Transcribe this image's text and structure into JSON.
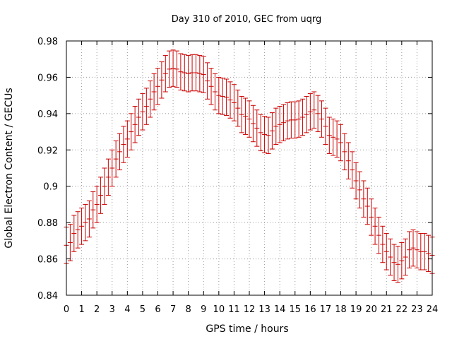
{
  "chart_data": {
    "type": "scatter",
    "title": "Day 310 of 2010, GEC from uqrg",
    "xlabel": "GPS time / hours",
    "ylabel": "Global Electron Content / GECUs",
    "xlim": [
      0,
      24
    ],
    "ylim": [
      0.84,
      0.98
    ],
    "x_ticks": [
      0,
      1,
      2,
      3,
      4,
      5,
      6,
      7,
      8,
      9,
      10,
      11,
      12,
      13,
      14,
      15,
      16,
      17,
      18,
      19,
      20,
      21,
      22,
      23,
      24
    ],
    "y_ticks": [
      0.84,
      0.86,
      0.88,
      0.9,
      0.92,
      0.94,
      0.96,
      0.98
    ],
    "y_tick_labels": [
      "0.84",
      "0.86",
      "0.88",
      "0.9",
      "0.92",
      "0.94",
      "0.96",
      "0.98"
    ],
    "grid": true,
    "error_bar": 0.01,
    "color": "#cc0000",
    "series": [
      {
        "x": [
          0,
          0.25,
          0.5,
          0.75,
          1,
          1.25,
          1.5,
          1.75,
          2,
          2.25,
          2.5,
          2.75,
          3,
          3.25,
          3.5,
          3.75,
          4,
          4.25,
          4.5,
          4.75,
          5,
          5.25,
          5.5,
          5.75,
          6,
          6.25,
          6.5,
          6.75,
          7,
          7.25,
          7.5,
          7.75,
          8,
          8.25,
          8.5,
          8.75,
          9,
          9.25,
          9.5,
          9.75,
          10,
          10.25,
          10.5,
          10.75,
          11,
          11.25,
          11.5,
          11.75,
          12,
          12.25,
          12.5,
          12.75,
          13,
          13.25,
          13.5,
          13.75,
          14,
          14.25,
          14.5,
          14.75,
          15,
          15.25,
          15.5,
          15.75,
          16,
          16.25,
          16.5,
          16.75,
          17,
          17.25,
          17.5,
          17.75,
          18,
          18.25,
          18.5,
          18.75,
          19,
          19.25,
          19.5,
          19.75,
          20,
          20.25,
          20.5,
          20.75,
          21,
          21.25,
          21.5,
          21.75,
          22,
          22.25,
          22.5,
          22.75,
          23,
          23.25,
          23.5,
          23.75,
          24
        ],
        "y": [
          0.8675,
          0.869,
          0.874,
          0.876,
          0.878,
          0.88,
          0.882,
          0.887,
          0.89,
          0.895,
          0.9,
          0.905,
          0.91,
          0.915,
          0.919,
          0.923,
          0.926,
          0.93,
          0.934,
          0.938,
          0.941,
          0.944,
          0.948,
          0.952,
          0.955,
          0.9585,
          0.962,
          0.9645,
          0.965,
          0.9645,
          0.963,
          0.9625,
          0.962,
          0.9625,
          0.9625,
          0.962,
          0.9615,
          0.958,
          0.955,
          0.952,
          0.95,
          0.9495,
          0.949,
          0.9475,
          0.946,
          0.943,
          0.9395,
          0.9385,
          0.937,
          0.9345,
          0.932,
          0.9295,
          0.9285,
          0.928,
          0.9305,
          0.933,
          0.934,
          0.935,
          0.936,
          0.9365,
          0.9365,
          0.937,
          0.938,
          0.9395,
          0.941,
          0.942,
          0.94,
          0.937,
          0.933,
          0.928,
          0.927,
          0.926,
          0.924,
          0.919,
          0.914,
          0.909,
          0.903,
          0.898,
          0.893,
          0.889,
          0.883,
          0.878,
          0.873,
          0.868,
          0.864,
          0.861,
          0.858,
          0.857,
          0.859,
          0.861,
          0.865,
          0.866,
          0.865,
          0.864,
          0.864,
          0.863,
          0.862
        ]
      }
    ]
  }
}
